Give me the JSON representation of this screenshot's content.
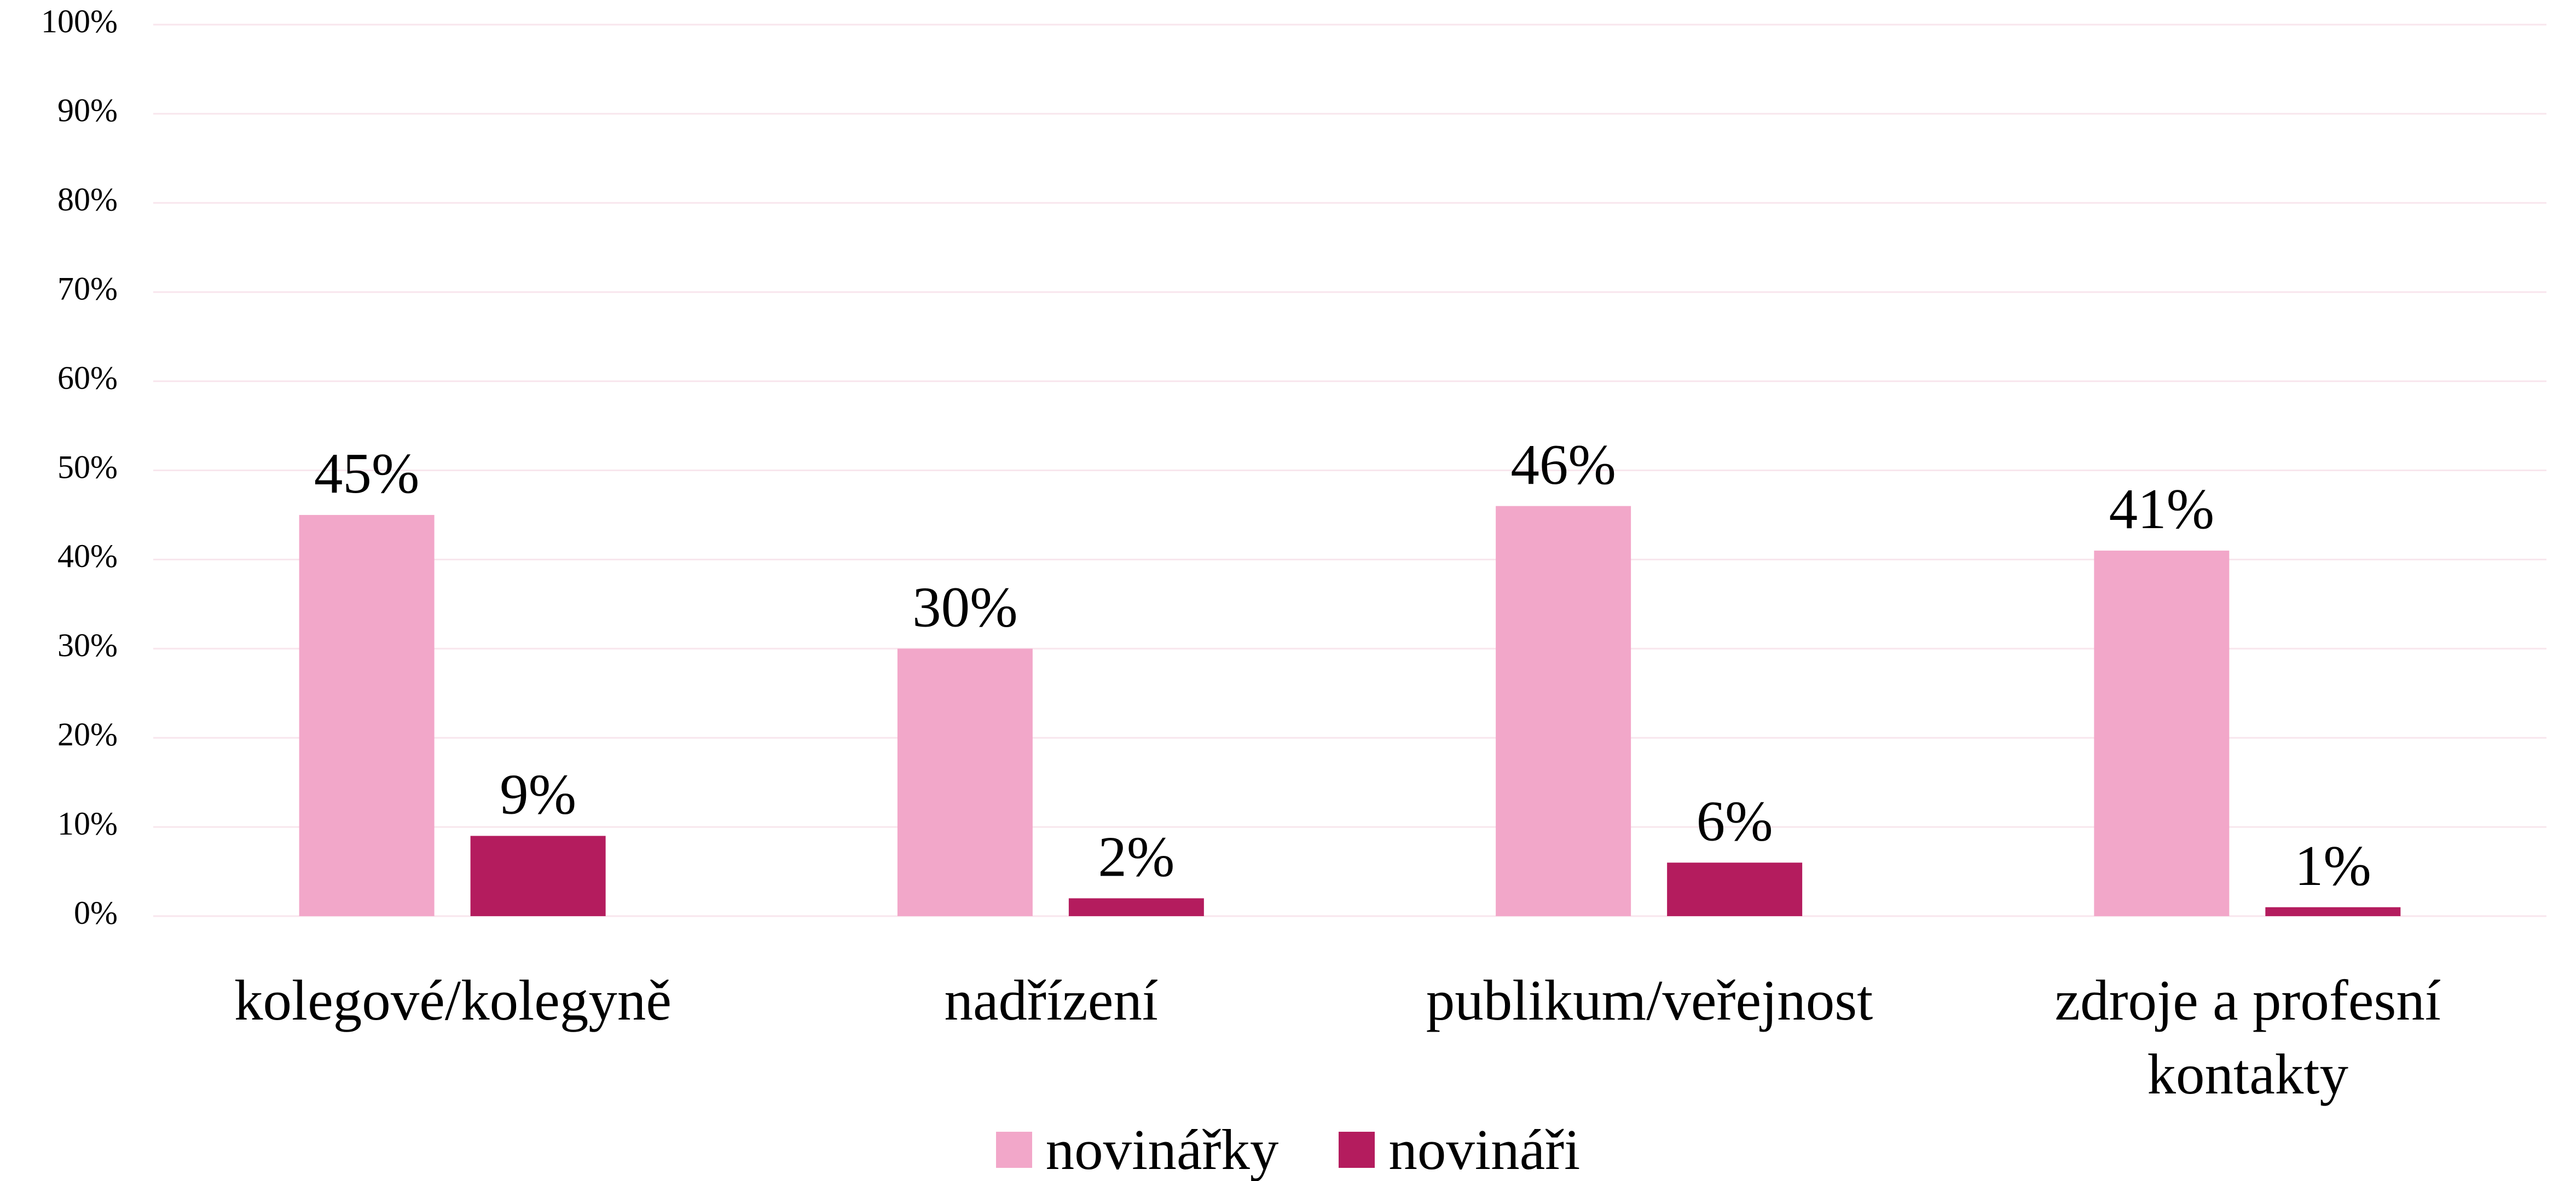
{
  "chart_data": {
    "type": "bar",
    "categories": [
      "kolegové/kolegyně",
      "nadřízení",
      "publikum/veřejnost",
      "zdroje a profesní kontakty"
    ],
    "series": [
      {
        "name": "novinářky",
        "color": "#f2a7c9",
        "values": [
          45,
          30,
          46,
          41
        ],
        "value_labels": [
          "45%",
          "30%",
          "46%",
          "41%"
        ]
      },
      {
        "name": "novináři",
        "color": "#b41c5e",
        "values": [
          9,
          2,
          6,
          1
        ],
        "value_labels": [
          "9%",
          "2%",
          "6%",
          "1%"
        ]
      }
    ],
    "ylim": [
      0,
      100
    ],
    "yticks": [
      {
        "value": 0,
        "label": "0%"
      },
      {
        "value": 10,
        "label": "10%"
      },
      {
        "value": 20,
        "label": "20%"
      },
      {
        "value": 30,
        "label": "30%"
      },
      {
        "value": 40,
        "label": "40%"
      },
      {
        "value": 50,
        "label": "50%"
      },
      {
        "value": 60,
        "label": "60%"
      },
      {
        "value": 70,
        "label": "70%"
      },
      {
        "value": 80,
        "label": "80%"
      },
      {
        "value": 90,
        "label": "90%"
      },
      {
        "value": 100,
        "label": "100%"
      }
    ],
    "grid": true,
    "legend": "bottom"
  }
}
